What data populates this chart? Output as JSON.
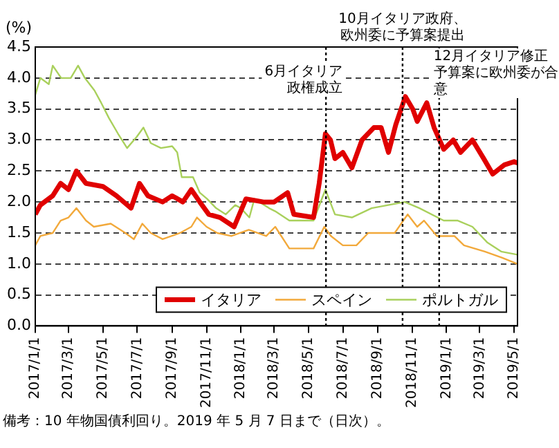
{
  "chart_data": {
    "type": "line",
    "ylabel": "(%)",
    "xlim": [
      "2017-01-01",
      "2019-05-07"
    ],
    "xticks": [
      {
        "value": "2017-01-01",
        "label": "2017/1/1"
      },
      {
        "value": "2017-03-01",
        "label": "2017/3/1"
      },
      {
        "value": "2017-05-01",
        "label": "2017/5/1"
      },
      {
        "value": "2017-07-01",
        "label": "2017/7/1"
      },
      {
        "value": "2017-09-01",
        "label": "2017/9/1"
      },
      {
        "value": "2017-11-01",
        "label": "2017/11/1"
      },
      {
        "value": "2018-01-01",
        "label": "2018/1/1"
      },
      {
        "value": "2018-03-01",
        "label": "2018/3/1"
      },
      {
        "value": "2018-05-01",
        "label": "2018/5/1"
      },
      {
        "value": "2018-07-01",
        "label": "2018/7/1"
      },
      {
        "value": "2018-09-01",
        "label": "2018/9/1"
      },
      {
        "value": "2018-11-01",
        "label": "2018/11/1"
      },
      {
        "value": "2019-01-01",
        "label": "2019/1/1"
      },
      {
        "value": "2019-03-01",
        "label": "2019/3/1"
      },
      {
        "value": "2019-05-01",
        "label": "2019/5/1"
      }
    ],
    "ylim": [
      0,
      4.5
    ],
    "yticks": [
      {
        "value": 0,
        "label": "0.0"
      },
      {
        "value": 0.5,
        "label": "0.5"
      },
      {
        "value": 1,
        "label": "1.0"
      },
      {
        "value": 1.5,
        "label": "1.5"
      },
      {
        "value": 2,
        "label": "2.0"
      },
      {
        "value": 2.5,
        "label": "2.5"
      },
      {
        "value": 3,
        "label": "3.0"
      },
      {
        "value": 3.5,
        "label": "3.5"
      },
      {
        "value": 4,
        "label": "4.0"
      },
      {
        "value": 4.5,
        "label": "4.5"
      }
    ],
    "grid": "y",
    "legend": "bottom right",
    "series": [
      {
        "name": "イタリア",
        "color": "#e00000",
        "x": [
          "2017-01-01",
          "2017-01-10",
          "2017-02-01",
          "2017-02-15",
          "2017-03-01",
          "2017-03-15",
          "2017-04-01",
          "2017-05-01",
          "2017-05-25",
          "2017-06-20",
          "2017-07-05",
          "2017-07-20",
          "2017-08-15",
          "2017-09-01",
          "2017-09-20",
          "2017-10-05",
          "2017-10-20",
          "2017-11-05",
          "2017-11-25",
          "2017-12-20",
          "2018-01-10",
          "2018-02-10",
          "2018-03-01",
          "2018-03-25",
          "2018-04-05",
          "2018-05-10",
          "2018-05-20",
          "2018-05-31",
          "2018-06-09",
          "2018-06-17",
          "2018-07-01",
          "2018-07-17",
          "2018-08-04",
          "2018-08-25",
          "2018-09-07",
          "2018-09-20",
          "2018-10-03",
          "2018-10-20",
          "2018-11-02",
          "2018-11-10",
          "2018-11-27",
          "2018-12-10",
          "2018-12-27",
          "2019-01-13",
          "2019-01-26",
          "2019-02-16",
          "2019-03-08",
          "2019-03-24",
          "2019-04-14",
          "2019-05-01",
          "2019-05-07"
        ],
        "values": [
          1.8,
          1.95,
          2.1,
          2.3,
          2.2,
          2.5,
          2.3,
          2.25,
          2.1,
          1.9,
          2.3,
          2.1,
          2.0,
          2.1,
          2.0,
          2.2,
          2.0,
          1.8,
          1.75,
          1.6,
          2.05,
          2.0,
          2.0,
          2.15,
          1.8,
          1.75,
          2.3,
          3.1,
          3.0,
          2.7,
          2.8,
          2.55,
          3.0,
          3.2,
          3.2,
          2.8,
          3.25,
          3.7,
          3.5,
          3.3,
          3.6,
          3.2,
          2.85,
          3.0,
          2.8,
          3.0,
          2.7,
          2.45,
          2.6,
          2.65,
          2.63
        ]
      },
      {
        "name": "スペイン",
        "color": "#f2a93b",
        "x": [
          "2017-01-01",
          "2017-01-10",
          "2017-02-01",
          "2017-02-15",
          "2017-03-01",
          "2017-03-15",
          "2017-04-01",
          "2017-04-15",
          "2017-05-15",
          "2017-06-10",
          "2017-06-25",
          "2017-07-10",
          "2017-07-25",
          "2017-08-15",
          "2017-09-15",
          "2017-10-05",
          "2017-10-15",
          "2017-11-01",
          "2017-11-20",
          "2017-12-15",
          "2018-01-15",
          "2018-02-15",
          "2018-03-03",
          "2018-03-28",
          "2018-05-10",
          "2018-05-29",
          "2018-06-10",
          "2018-07-01",
          "2018-07-25",
          "2018-08-15",
          "2018-10-01",
          "2018-10-24",
          "2018-11-10",
          "2018-11-22",
          "2018-12-15",
          "2019-01-15",
          "2019-02-01",
          "2019-03-10",
          "2019-04-10",
          "2019-05-07"
        ],
        "values": [
          1.3,
          1.45,
          1.5,
          1.7,
          1.75,
          1.9,
          1.7,
          1.6,
          1.65,
          1.5,
          1.4,
          1.65,
          1.5,
          1.4,
          1.5,
          1.6,
          1.75,
          1.6,
          1.5,
          1.45,
          1.55,
          1.45,
          1.6,
          1.25,
          1.25,
          1.6,
          1.45,
          1.3,
          1.3,
          1.5,
          1.5,
          1.8,
          1.6,
          1.7,
          1.45,
          1.45,
          1.3,
          1.2,
          1.1,
          1.0
        ]
      },
      {
        "name": "ポルトガル",
        "color": "#a9d05c",
        "x": [
          "2017-01-01",
          "2017-01-10",
          "2017-01-25",
          "2017-02-01",
          "2017-02-16",
          "2017-03-05",
          "2017-03-18",
          "2017-03-30",
          "2017-04-16",
          "2017-04-28",
          "2017-05-12",
          "2017-05-28",
          "2017-06-13",
          "2017-06-30",
          "2017-07-12",
          "2017-07-25",
          "2017-08-12",
          "2017-09-01",
          "2017-09-10",
          "2017-09-18",
          "2017-10-08",
          "2017-10-20",
          "2017-11-02",
          "2017-11-18",
          "2017-12-05",
          "2017-12-22",
          "2018-01-01",
          "2018-01-16",
          "2018-01-25",
          "2018-02-20",
          "2018-03-03",
          "2018-03-28",
          "2018-05-10",
          "2018-05-31",
          "2018-06-17",
          "2018-07-17",
          "2018-08-21",
          "2018-10-19",
          "2018-11-14",
          "2018-12-27",
          "2019-01-21",
          "2019-02-16",
          "2019-03-14",
          "2019-04-08",
          "2019-05-07"
        ],
        "values": [
          3.73,
          4.0,
          3.9,
          4.2,
          4.0,
          4.0,
          4.2,
          4.0,
          3.8,
          3.6,
          3.35,
          3.1,
          2.87,
          3.05,
          3.2,
          2.95,
          2.87,
          2.9,
          2.8,
          2.4,
          2.4,
          2.15,
          2.05,
          1.9,
          1.8,
          1.95,
          1.9,
          1.75,
          2.05,
          1.9,
          1.85,
          1.7,
          1.7,
          2.2,
          1.8,
          1.75,
          1.9,
          2.0,
          1.9,
          1.7,
          1.7,
          1.6,
          1.35,
          1.2,
          1.15
        ]
      }
    ],
    "ref_lines": [
      {
        "axis": "x",
        "value": "2018-06-01",
        "label": "6月イタリア政権成立",
        "color": "#000000",
        "line_style": "dotted"
      },
      {
        "axis": "x",
        "value": "2018-10-15",
        "label": "10月イタリア政府、欧州委に予算案提出",
        "color": "#000000",
        "line_style": "dotted"
      },
      {
        "axis": "x",
        "value": "2018-12-19",
        "label": "12月イタリア修正予算案に欧州委が合意",
        "color": "#000000",
        "line_style": "dotted"
      }
    ],
    "annotations": [
      "備考：10 年物国債利回り。2019 年 5 月 7 日まで（日次）。"
    ]
  }
}
